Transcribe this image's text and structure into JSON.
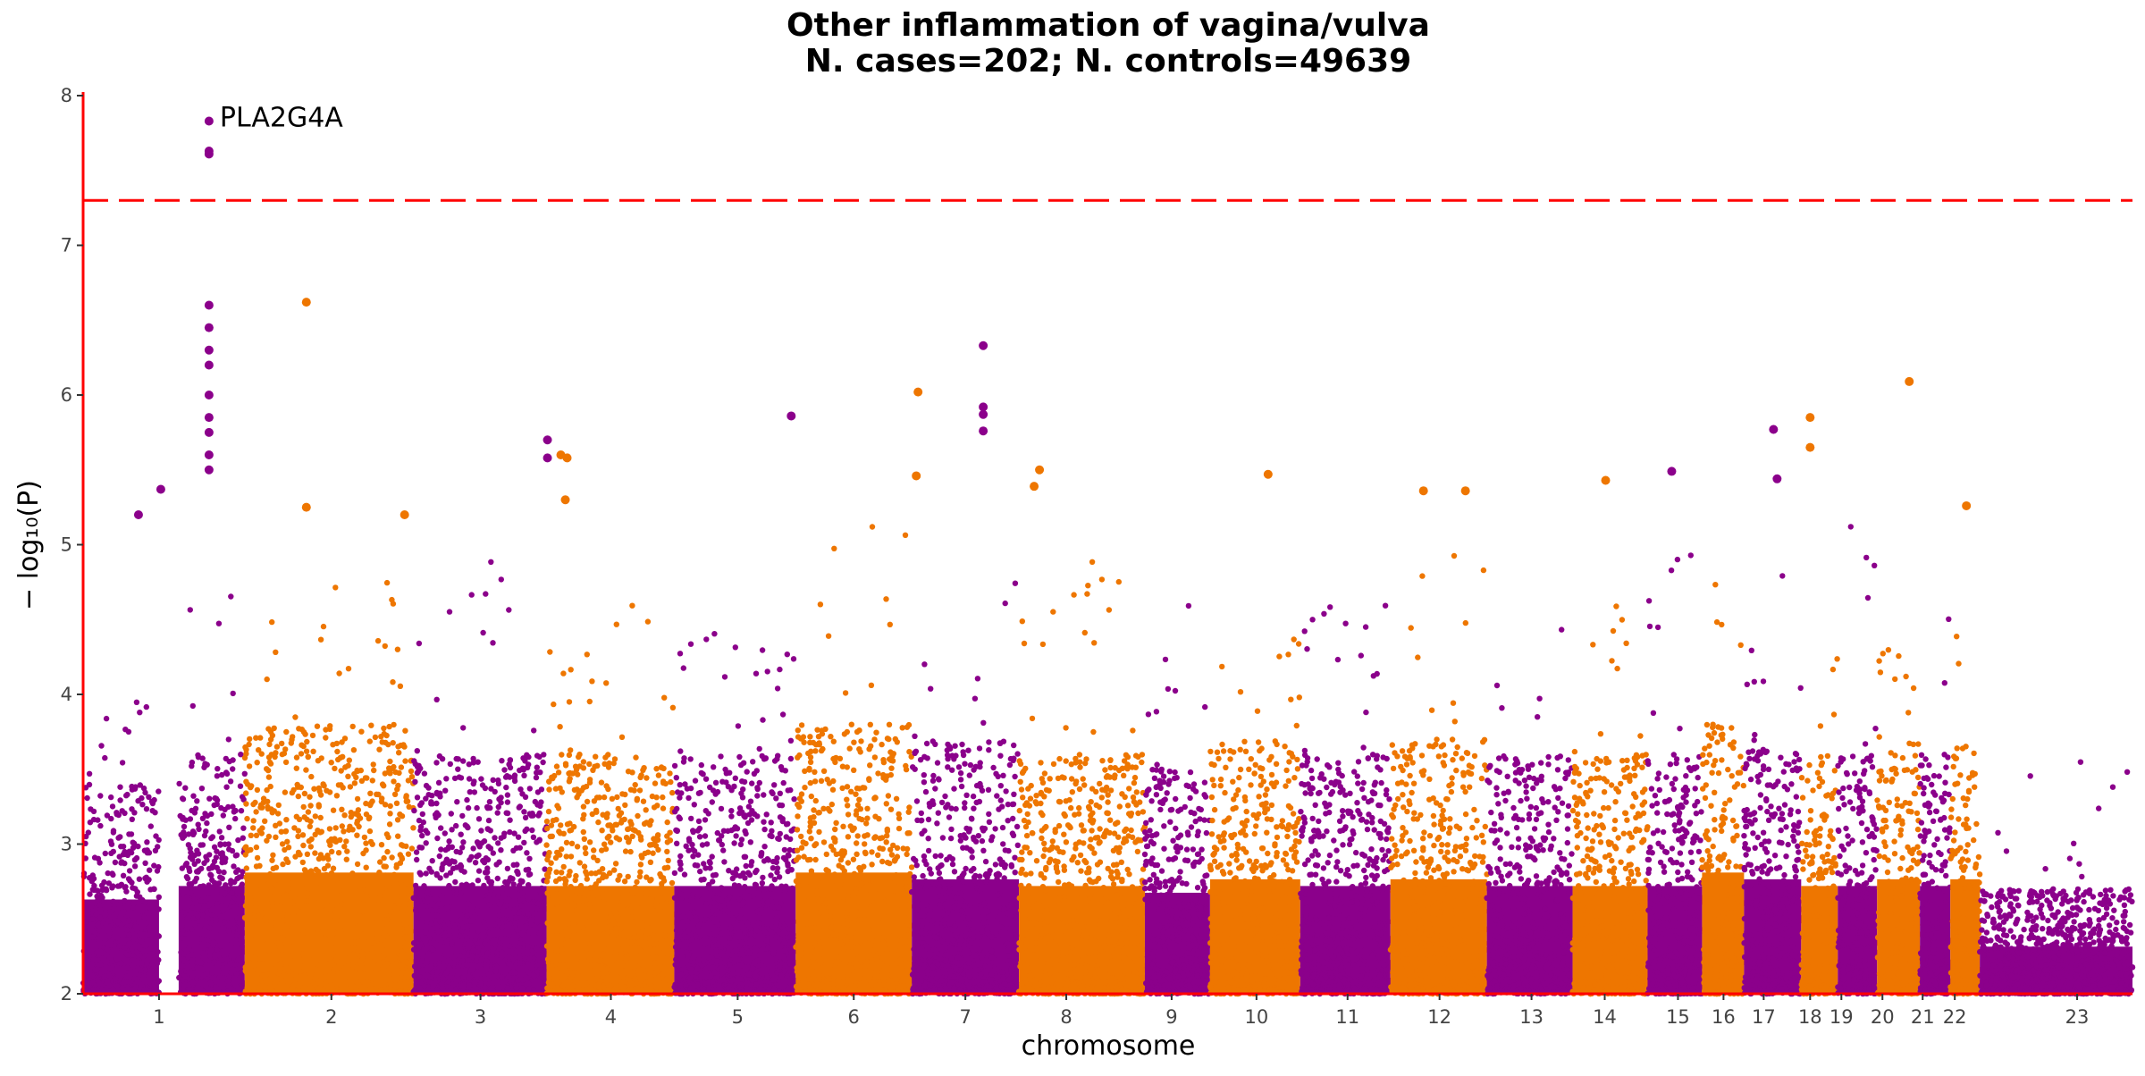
{
  "chart_data": {
    "type": "scatter",
    "title": "Other inflammation of vagina/vulva",
    "subtitle": "N. cases=202; N. controls=49639",
    "xlabel": "chromosome",
    "ylabel": "− log₁₀(P)",
    "ylim": [
      2,
      8
    ],
    "yticks": [
      2,
      3,
      4,
      5,
      6,
      7,
      8
    ],
    "grid": false,
    "significance_threshold": 7.3,
    "colors": {
      "odd": "#8b008b",
      "even": "#ee7600",
      "threshold": "#ff0000",
      "axis": "#ff0000"
    },
    "chromosomes": [
      {
        "label": "1",
        "start": 0,
        "end": 85,
        "tick": 85
      },
      {
        "label": "2",
        "start": 107,
        "end": 370,
        "tick": 278
      },
      {
        "label": "3",
        "start": 370,
        "end": 519,
        "tick": 445
      },
      {
        "label": "4",
        "start": 519,
        "end": 662,
        "tick": 591
      },
      {
        "label": "5",
        "start": 662,
        "end": 798,
        "tick": 733
      },
      {
        "label": "6",
        "start": 798,
        "end": 928,
        "tick": 863
      },
      {
        "label": "7",
        "start": 928,
        "end": 1048,
        "tick": 988
      },
      {
        "label": "8",
        "start": 1048,
        "end": 1189,
        "tick": 1101
      },
      {
        "label": "9",
        "start": 1189,
        "end": 1262,
        "tick": 1219
      },
      {
        "label": "10",
        "start": 1262,
        "end": 1363,
        "tick": 1314
      },
      {
        "label": "11",
        "start": 1363,
        "end": 1464,
        "tick": 1416
      },
      {
        "label": "12",
        "start": 1464,
        "end": 1572,
        "tick": 1519
      },
      {
        "label": "13",
        "start": 1572,
        "end": 1668,
        "tick": 1622
      },
      {
        "label": "14",
        "start": 1668,
        "end": 1752,
        "tick": 1704
      },
      {
        "label": "15",
        "start": 1752,
        "end": 1813,
        "tick": 1786
      },
      {
        "label": "16",
        "start": 1813,
        "end": 1860,
        "tick": 1837
      },
      {
        "label": "17",
        "start": 1860,
        "end": 1924,
        "tick": 1882
      },
      {
        "label": "18",
        "start": 1924,
        "end": 1965,
        "tick": 1934
      },
      {
        "label": "19",
        "start": 1965,
        "end": 2009,
        "tick": 1969
      },
      {
        "label": "20",
        "start": 2009,
        "end": 2057,
        "tick": 2015
      },
      {
        "label": "21",
        "start": 2057,
        "end": 2091,
        "tick": 2060
      },
      {
        "label": "22",
        "start": 2091,
        "end": 2124,
        "tick": 2096
      },
      {
        "label": "23",
        "start": 2124,
        "end": 2295,
        "tick": 2233
      }
    ],
    "top_hits": [
      {
        "chromosome": "1",
        "x": 141,
        "y": 7.83,
        "label": "PLA2G4A"
      },
      {
        "chromosome": "1",
        "x": 141,
        "y": 7.63
      },
      {
        "chromosome": "1",
        "x": 141,
        "y": 7.61
      },
      {
        "chromosome": "1",
        "x": 141,
        "y": 6.6
      },
      {
        "chromosome": "1",
        "x": 141,
        "y": 6.45
      },
      {
        "chromosome": "1",
        "x": 141,
        "y": 6.3
      },
      {
        "chromosome": "1",
        "x": 141,
        "y": 6.2
      },
      {
        "chromosome": "1",
        "x": 141,
        "y": 6.0
      },
      {
        "chromosome": "1",
        "x": 141,
        "y": 5.85
      },
      {
        "chromosome": "1",
        "x": 141,
        "y": 5.75
      },
      {
        "chromosome": "1",
        "x": 141,
        "y": 5.6
      },
      {
        "chromosome": "1",
        "x": 141,
        "y": 5.5
      },
      {
        "chromosome": "1",
        "x": 87,
        "y": 5.37
      },
      {
        "chromosome": "1",
        "x": 62,
        "y": 5.2
      },
      {
        "chromosome": "2",
        "x": 250,
        "y": 6.62
      },
      {
        "chromosome": "2",
        "x": 250,
        "y": 5.25
      },
      {
        "chromosome": "2",
        "x": 360,
        "y": 5.2
      },
      {
        "chromosome": "3",
        "x": 520,
        "y": 5.7
      },
      {
        "chromosome": "3",
        "x": 520,
        "y": 5.58
      },
      {
        "chromosome": "4",
        "x": 535,
        "y": 5.6
      },
      {
        "chromosome": "4",
        "x": 542,
        "y": 5.58
      },
      {
        "chromosome": "4",
        "x": 540,
        "y": 5.3
      },
      {
        "chromosome": "5",
        "x": 793,
        "y": 5.86
      },
      {
        "chromosome": "6",
        "x": 935,
        "y": 6.02
      },
      {
        "chromosome": "6",
        "x": 933,
        "y": 5.46
      },
      {
        "chromosome": "7",
        "x": 1008,
        "y": 6.33
      },
      {
        "chromosome": "7",
        "x": 1008,
        "y": 5.92
      },
      {
        "chromosome": "7",
        "x": 1008,
        "y": 5.87
      },
      {
        "chromosome": "7",
        "x": 1008,
        "y": 5.76
      },
      {
        "chromosome": "8",
        "x": 1071,
        "y": 5.5
      },
      {
        "chromosome": "8",
        "x": 1065,
        "y": 5.39
      },
      {
        "chromosome": "10",
        "x": 1327,
        "y": 5.47
      },
      {
        "chromosome": "12",
        "x": 1501,
        "y": 5.36
      },
      {
        "chromosome": "12",
        "x": 1548,
        "y": 5.36
      },
      {
        "chromosome": "14",
        "x": 1705,
        "y": 5.43
      },
      {
        "chromosome": "15",
        "x": 1779,
        "y": 5.49
      },
      {
        "chromosome": "17",
        "x": 1893,
        "y": 5.77
      },
      {
        "chromosome": "17",
        "x": 1897,
        "y": 5.44
      },
      {
        "chromosome": "18",
        "x": 1934,
        "y": 5.85
      },
      {
        "chromosome": "18",
        "x": 1934,
        "y": 5.65
      },
      {
        "chromosome": "20",
        "x": 2045,
        "y": 6.09
      },
      {
        "chromosome": "22",
        "x": 2109,
        "y": 5.26
      }
    ],
    "background_bands": [
      {
        "chromosome": "1",
        "x_from": 0,
        "x_to": 85,
        "typical_max": 3.4,
        "peak": 4.3
      },
      {
        "chromosome": "1",
        "x_from": 107,
        "x_to": 181,
        "typical_max": 3.6,
        "peak": 4.7
      },
      {
        "chromosome": "2",
        "x_from": 181,
        "x_to": 370,
        "typical_max": 3.8,
        "peak": 4.9
      },
      {
        "chromosome": "3",
        "x_from": 370,
        "x_to": 519,
        "typical_max": 3.6,
        "peak": 4.9
      },
      {
        "chromosome": "4",
        "x_from": 519,
        "x_to": 662,
        "typical_max": 3.6,
        "peak": 4.6
      },
      {
        "chromosome": "5",
        "x_from": 662,
        "x_to": 798,
        "typical_max": 3.6,
        "peak": 4.5
      },
      {
        "chromosome": "6",
        "x_from": 798,
        "x_to": 928,
        "typical_max": 3.8,
        "peak": 5.2
      },
      {
        "chromosome": "7",
        "x_from": 928,
        "x_to": 1048,
        "typical_max": 3.7,
        "peak": 4.9
      },
      {
        "chromosome": "8",
        "x_from": 1048,
        "x_to": 1189,
        "typical_max": 3.6,
        "peak": 4.9
      },
      {
        "chromosome": "9",
        "x_from": 1189,
        "x_to": 1262,
        "typical_max": 3.5,
        "peak": 4.6
      },
      {
        "chromosome": "10",
        "x_from": 1262,
        "x_to": 1363,
        "typical_max": 3.7,
        "peak": 4.6
      },
      {
        "chromosome": "11",
        "x_from": 1363,
        "x_to": 1464,
        "typical_max": 3.6,
        "peak": 4.7
      },
      {
        "chromosome": "12",
        "x_from": 1464,
        "x_to": 1572,
        "typical_max": 3.7,
        "peak": 5.0
      },
      {
        "chromosome": "13",
        "x_from": 1572,
        "x_to": 1668,
        "typical_max": 3.6,
        "peak": 4.7
      },
      {
        "chromosome": "14",
        "x_from": 1668,
        "x_to": 1752,
        "typical_max": 3.6,
        "peak": 4.6
      },
      {
        "chromosome": "15",
        "x_from": 1752,
        "x_to": 1813,
        "typical_max": 3.6,
        "peak": 5.1
      },
      {
        "chromosome": "16",
        "x_from": 1813,
        "x_to": 1860,
        "typical_max": 3.8,
        "peak": 5.2
      },
      {
        "chromosome": "17",
        "x_from": 1860,
        "x_to": 1924,
        "typical_max": 3.7,
        "peak": 4.8
      },
      {
        "chromosome": "18",
        "x_from": 1924,
        "x_to": 1965,
        "typical_max": 3.6,
        "peak": 4.5
      },
      {
        "chromosome": "19",
        "x_from": 1965,
        "x_to": 2009,
        "typical_max": 3.6,
        "peak": 5.3
      },
      {
        "chromosome": "20",
        "x_from": 2009,
        "x_to": 2057,
        "typical_max": 3.7,
        "peak": 4.4
      },
      {
        "chromosome": "21",
        "x_from": 2057,
        "x_to": 2091,
        "typical_max": 3.6,
        "peak": 4.6
      },
      {
        "chromosome": "22",
        "x_from": 2091,
        "x_to": 2124,
        "typical_max": 3.7,
        "peak": 4.9
      },
      {
        "chromosome": "23",
        "x_from": 2124,
        "x_to": 2295,
        "typical_max": 2.7,
        "peak": 3.6
      }
    ]
  }
}
